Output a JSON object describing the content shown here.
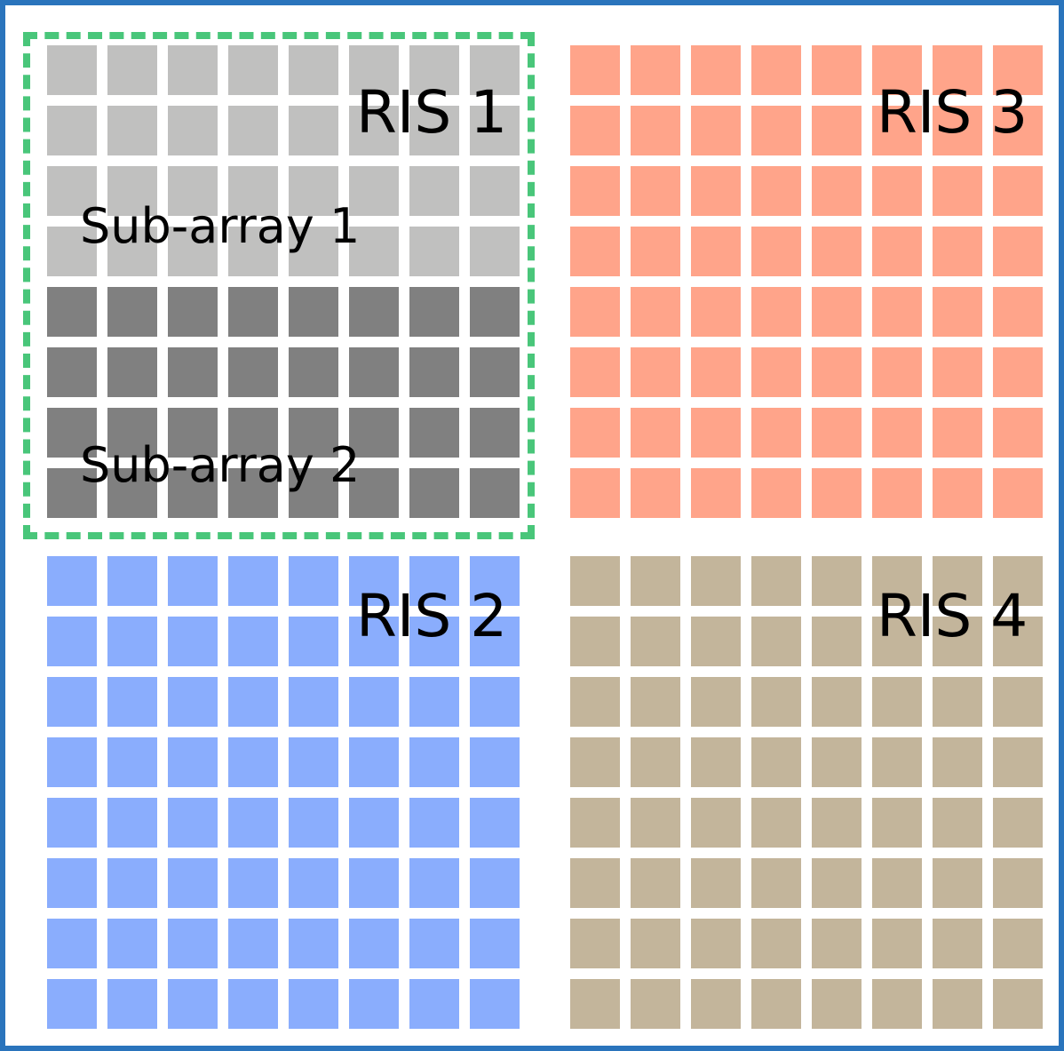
{
  "colors": {
    "border": "#2a74bc",
    "highlight": "#49c67a",
    "subarray_1": "#c0c0bf",
    "subarray_2": "#808080",
    "ris_2": "#8aadfd",
    "ris_3": "#ffa48a",
    "ris_4": "#c3b59b"
  },
  "panels": [
    {
      "id": "ris-1",
      "label": "RIS 1",
      "rows": 8,
      "cols": 8,
      "sub_arrays": [
        {
          "label": "Sub-array 1",
          "rows": 4,
          "color_key": "subarray_1"
        },
        {
          "label": "Sub-array 2",
          "rows": 4,
          "color_key": "subarray_2"
        }
      ]
    },
    {
      "id": "ris-2",
      "label": "RIS 2",
      "rows": 8,
      "cols": 8,
      "color_key": "ris_2"
    },
    {
      "id": "ris-3",
      "label": "RIS 3",
      "rows": 8,
      "cols": 8,
      "color_key": "ris_3"
    },
    {
      "id": "ris-4",
      "label": "RIS 4",
      "rows": 8,
      "cols": 8,
      "color_key": "ris_4"
    }
  ]
}
